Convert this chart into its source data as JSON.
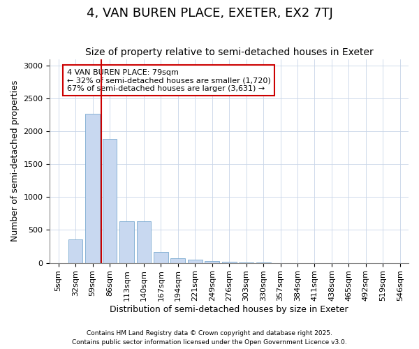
{
  "title": "4, VAN BUREN PLACE, EXETER, EX2 7TJ",
  "subtitle": "Size of property relative to semi-detached houses in Exeter",
  "xlabel": "Distribution of semi-detached houses by size in Exeter",
  "ylabel": "Number of semi-detached properties",
  "categories": [
    "5sqm",
    "32sqm",
    "59sqm",
    "86sqm",
    "113sqm",
    "140sqm",
    "167sqm",
    "194sqm",
    "221sqm",
    "249sqm",
    "276sqm",
    "303sqm",
    "330sqm",
    "357sqm",
    "384sqm",
    "411sqm",
    "438sqm",
    "465sqm",
    "492sqm",
    "519sqm",
    "546sqm"
  ],
  "values": [
    0,
    360,
    2270,
    1880,
    635,
    635,
    170,
    75,
    50,
    30,
    15,
    5,
    2,
    0,
    0,
    0,
    0,
    0,
    0,
    0,
    0
  ],
  "bar_color": "#c8d8f0",
  "bar_edge_color": "#7aaad0",
  "vline_x": 2.5,
  "vline_color": "#cc0000",
  "annotation_text": "4 VAN BUREN PLACE: 79sqm\n← 32% of semi-detached houses are smaller (1,720)\n67% of semi-detached houses are larger (3,631) →",
  "annotation_box_color": "#ffffff",
  "annotation_box_edge_color": "#cc0000",
  "ylim": [
    0,
    3100
  ],
  "yticks": [
    0,
    500,
    1000,
    1500,
    2000,
    2500,
    3000
  ],
  "footnote_line1": "Contains HM Land Registry data © Crown copyright and database right 2025.",
  "footnote_line2": "Contains public sector information licensed under the Open Government Licence v3.0.",
  "bg_color": "#ffffff",
  "plot_bg_color": "#ffffff",
  "title_fontsize": 13,
  "subtitle_fontsize": 10,
  "axis_label_fontsize": 9,
  "tick_fontsize": 8
}
